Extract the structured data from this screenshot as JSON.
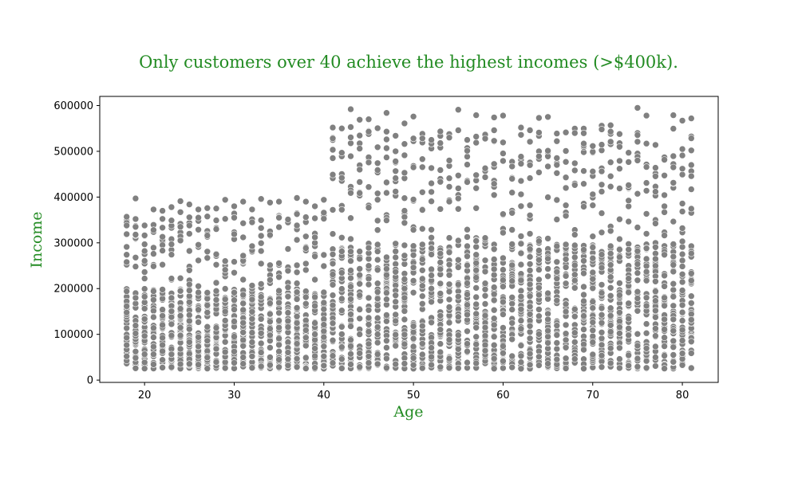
{
  "chart_data": {
    "type": "scatter",
    "title": "Only customers over 40 achieve the highest incomes (>$400k).",
    "xlabel": "Age",
    "ylabel": "Income",
    "xlim": [
      15,
      84
    ],
    "ylim": [
      -5000,
      620000
    ],
    "x_ticks": [
      20,
      30,
      40,
      50,
      60,
      70,
      80
    ],
    "y_ticks": [
      0,
      100000,
      200000,
      300000,
      400000,
      500000,
      600000
    ],
    "grid": false,
    "legend": "none",
    "colors": {
      "title": "#228b22",
      "axis_label": "#228b22",
      "point": "#808080",
      "point_edge": "#ffffff",
      "frame": "#000000"
    },
    "density_note": "Dense columns of points at every integer age 18–81 between ~25,000 and ~200,000 (ages 18–40) or ~300,000 (ages 41–81); sparser points above. Highest incomes (~400,000–595,000) appear only for ages 41+.",
    "groups": [
      {
        "age_range": [
          18,
          40
        ],
        "income_dense": [
          25000,
          200000
        ],
        "income_sparse": [
          200000,
          400000
        ],
        "max_income": 400000
      },
      {
        "age_range": [
          41,
          81
        ],
        "income_dense": [
          25000,
          300000
        ],
        "income_sparse": [
          300000,
          595000
        ],
        "max_income": 595000
      }
    ],
    "points": [
      {
        "x": 18,
        "y": 357000
      },
      {
        "x": 18,
        "y": 338000
      },
      {
        "x": 18,
        "y": 258000
      },
      {
        "x": 19,
        "y": 397000
      },
      {
        "x": 19,
        "y": 352000
      },
      {
        "x": 19,
        "y": 318000
      },
      {
        "x": 20,
        "y": 338000
      },
      {
        "x": 20,
        "y": 282000
      },
      {
        "x": 20,
        "y": 222000
      },
      {
        "x": 21,
        "y": 373000
      },
      {
        "x": 21,
        "y": 328000
      },
      {
        "x": 21,
        "y": 276000
      },
      {
        "x": 22,
        "y": 370000
      },
      {
        "x": 22,
        "y": 313000
      },
      {
        "x": 22,
        "y": 283000
      },
      {
        "x": 23,
        "y": 378000
      },
      {
        "x": 23,
        "y": 349000
      },
      {
        "x": 23,
        "y": 222000
      },
      {
        "x": 24,
        "y": 391000
      },
      {
        "x": 24,
        "y": 305000
      },
      {
        "x": 25,
        "y": 384000
      },
      {
        "x": 25,
        "y": 338000
      },
      {
        "x": 25,
        "y": 240000
      },
      {
        "x": 26,
        "y": 373000
      },
      {
        "x": 26,
        "y": 355000
      },
      {
        "x": 27,
        "y": 376000
      },
      {
        "x": 27,
        "y": 316000
      },
      {
        "x": 27,
        "y": 267000
      },
      {
        "x": 28,
        "y": 375000
      },
      {
        "x": 28,
        "y": 330000
      },
      {
        "x": 29,
        "y": 394000
      },
      {
        "x": 29,
        "y": 241000
      },
      {
        "x": 30,
        "y": 380000
      },
      {
        "x": 30,
        "y": 355000
      },
      {
        "x": 31,
        "y": 390000
      },
      {
        "x": 31,
        "y": 312000
      },
      {
        "x": 32,
        "y": 373000
      },
      {
        "x": 32,
        "y": 345000
      },
      {
        "x": 33,
        "y": 396000
      },
      {
        "x": 33,
        "y": 282000
      },
      {
        "x": 34,
        "y": 388000
      },
      {
        "x": 34,
        "y": 317000
      },
      {
        "x": 35,
        "y": 390000
      },
      {
        "x": 35,
        "y": 355000
      },
      {
        "x": 36,
        "y": 351000
      },
      {
        "x": 37,
        "y": 398000
      },
      {
        "x": 37,
        "y": 251000
      },
      {
        "x": 38,
        "y": 390000
      },
      {
        "x": 38,
        "y": 356000
      },
      {
        "x": 39,
        "y": 380000
      },
      {
        "x": 39,
        "y": 312000
      },
      {
        "x": 40,
        "y": 394000
      },
      {
        "x": 40,
        "y": 366000
      },
      {
        "x": 41,
        "y": 552000
      },
      {
        "x": 41,
        "y": 485000
      },
      {
        "x": 41,
        "y": 449000
      },
      {
        "x": 42,
        "y": 550000
      },
      {
        "x": 42,
        "y": 497000
      },
      {
        "x": 42,
        "y": 442000
      },
      {
        "x": 43,
        "y": 592000
      },
      {
        "x": 43,
        "y": 553000
      },
      {
        "x": 43,
        "y": 409000
      },
      {
        "x": 44,
        "y": 569000
      },
      {
        "x": 44,
        "y": 506000
      },
      {
        "x": 44,
        "y": 460000
      },
      {
        "x": 45,
        "y": 570000
      },
      {
        "x": 45,
        "y": 543000
      },
      {
        "x": 45,
        "y": 422000
      },
      {
        "x": 46,
        "y": 509000
      },
      {
        "x": 46,
        "y": 459000
      },
      {
        "x": 47,
        "y": 584000
      },
      {
        "x": 47,
        "y": 543000
      },
      {
        "x": 47,
        "y": 432000
      },
      {
        "x": 48,
        "y": 534000
      },
      {
        "x": 48,
        "y": 500000
      },
      {
        "x": 49,
        "y": 561000
      },
      {
        "x": 49,
        "y": 516000
      },
      {
        "x": 49,
        "y": 453000
      },
      {
        "x": 50,
        "y": 576000
      },
      {
        "x": 50,
        "y": 528000
      },
      {
        "x": 50,
        "y": 465000
      },
      {
        "x": 51,
        "y": 528000
      },
      {
        "x": 51,
        "y": 483000
      },
      {
        "x": 52,
        "y": 525000
      },
      {
        "x": 52,
        "y": 430000
      },
      {
        "x": 53,
        "y": 518000
      },
      {
        "x": 53,
        "y": 459000
      },
      {
        "x": 54,
        "y": 530000
      },
      {
        "x": 54,
        "y": 480000
      },
      {
        "x": 55,
        "y": 591000
      },
      {
        "x": 55,
        "y": 546000
      },
      {
        "x": 55,
        "y": 397000
      },
      {
        "x": 56,
        "y": 525000
      },
      {
        "x": 56,
        "y": 471000
      },
      {
        "x": 57,
        "y": 579000
      },
      {
        "x": 57,
        "y": 532000
      },
      {
        "x": 57,
        "y": 448000
      },
      {
        "x": 58,
        "y": 463000
      },
      {
        "x": 59,
        "y": 574000
      },
      {
        "x": 59,
        "y": 546000
      },
      {
        "x": 59,
        "y": 429000
      },
      {
        "x": 60,
        "y": 578000
      },
      {
        "x": 60,
        "y": 479000
      },
      {
        "x": 61,
        "y": 440000
      },
      {
        "x": 62,
        "y": 552000
      },
      {
        "x": 62,
        "y": 406000
      },
      {
        "x": 63,
        "y": 546000
      },
      {
        "x": 63,
        "y": 521000
      },
      {
        "x": 63,
        "y": 470000
      },
      {
        "x": 64,
        "y": 573000
      },
      {
        "x": 64,
        "y": 541000
      },
      {
        "x": 64,
        "y": 454000
      },
      {
        "x": 65,
        "y": 575000
      },
      {
        "x": 65,
        "y": 467000
      },
      {
        "x": 66,
        "y": 351000
      },
      {
        "x": 67,
        "y": 443000
      },
      {
        "x": 67,
        "y": 420000
      },
      {
        "x": 68,
        "y": 540000
      },
      {
        "x": 68,
        "y": 474000
      },
      {
        "x": 69,
        "y": 517000
      },
      {
        "x": 69,
        "y": 457000
      },
      {
        "x": 69,
        "y": 379000
      },
      {
        "x": 70,
        "y": 456000
      },
      {
        "x": 70,
        "y": 406000
      },
      {
        "x": 71,
        "y": 556000
      },
      {
        "x": 71,
        "y": 548000
      },
      {
        "x": 71,
        "y": 412000
      },
      {
        "x": 72,
        "y": 557000
      },
      {
        "x": 72,
        "y": 521000
      },
      {
        "x": 72,
        "y": 476000
      },
      {
        "x": 73,
        "y": 419000
      },
      {
        "x": 74,
        "y": 497000
      },
      {
        "x": 74,
        "y": 426000
      },
      {
        "x": 75,
        "y": 595000
      },
      {
        "x": 75,
        "y": 521000
      },
      {
        "x": 75,
        "y": 480000
      },
      {
        "x": 76,
        "y": 578000
      },
      {
        "x": 76,
        "y": 517000
      },
      {
        "x": 76,
        "y": 431000
      },
      {
        "x": 77,
        "y": 514000
      },
      {
        "x": 77,
        "y": 464000
      },
      {
        "x": 78,
        "y": 380000
      },
      {
        "x": 79,
        "y": 579000
      },
      {
        "x": 79,
        "y": 465000
      },
      {
        "x": 80,
        "y": 567000
      },
      {
        "x": 80,
        "y": 462000
      },
      {
        "x": 80,
        "y": 332000
      },
      {
        "x": 81,
        "y": 572000
      },
      {
        "x": 81,
        "y": 502000
      },
      {
        "x": 81,
        "y": 417000
      }
    ]
  }
}
